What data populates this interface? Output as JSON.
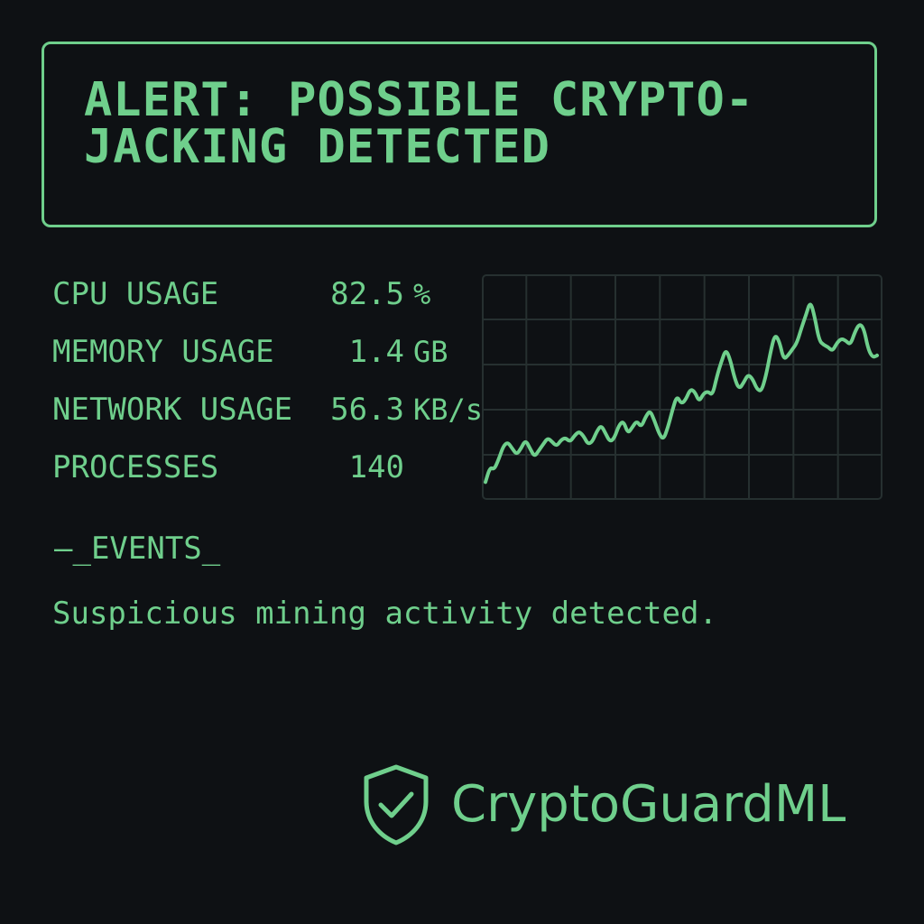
{
  "alert": {
    "title": "ALERT: POSSIBLE CRYPTO-JACKING DETECTED"
  },
  "metrics": [
    {
      "label": "CPU USAGE",
      "value": "82.5",
      "unit": "%"
    },
    {
      "label": "MEMORY USAGE",
      "value": "1.4",
      "unit": "GB"
    },
    {
      "label": "NETWORK USAGE",
      "value": "56.3",
      "unit": "KB/s"
    },
    {
      "label": "PROCESSES",
      "value": "140",
      "unit": ""
    }
  ],
  "events": {
    "header": "—_EVENTS_",
    "message": "Suspicious mining activity detected."
  },
  "brand": {
    "name": "CryptoGuardML",
    "icon": "shield-check-icon"
  },
  "colors": {
    "accent": "#6fcf8c",
    "background": "#0e1114",
    "grid": "#263030"
  },
  "chart_data": {
    "type": "line",
    "x": [
      0,
      1,
      2,
      3,
      4,
      5,
      6,
      7,
      8,
      9,
      10,
      11,
      12,
      13,
      14,
      15,
      16,
      17,
      18,
      19,
      20,
      21,
      22,
      23,
      24,
      25,
      26,
      27,
      28,
      29,
      30,
      31,
      32,
      33,
      34,
      35,
      36,
      37,
      38,
      39,
      40,
      41,
      42,
      43,
      44,
      45,
      46,
      47,
      48,
      49,
      50,
      51,
      52,
      53,
      54,
      55,
      56,
      57,
      58,
      59,
      60,
      61,
      62,
      63,
      64,
      65,
      66,
      67,
      68,
      69,
      70,
      71,
      72,
      73,
      74,
      75,
      76,
      77,
      78,
      79,
      80,
      81,
      82,
      83,
      84,
      85,
      86,
      87,
      88
    ],
    "series": [
      {
        "values": [
          5,
          12,
          11,
          16,
          22,
          24,
          21,
          18,
          21,
          25,
          21,
          17,
          20,
          23,
          26,
          24,
          22,
          25,
          26,
          24,
          27,
          29,
          27,
          23,
          24,
          29,
          32,
          28,
          24,
          26,
          32,
          34,
          28,
          31,
          34,
          31,
          36,
          39,
          34,
          28,
          25,
          31,
          39,
          46,
          42,
          44,
          49,
          48,
          43,
          47,
          48,
          46,
          55,
          62,
          68,
          63,
          54,
          49,
          52,
          56,
          54,
          49,
          48,
          55,
          66,
          75,
          72,
          63,
          65,
          68,
          71,
          78,
          84,
          91,
          83,
          72,
          70,
          69,
          67,
          71,
          73,
          72,
          70,
          76,
          80,
          78,
          68,
          64,
          65
        ],
        "color": "#6fcf8c"
      }
    ],
    "ylim": [
      0,
      100
    ],
    "grid": true,
    "legend": "none"
  }
}
